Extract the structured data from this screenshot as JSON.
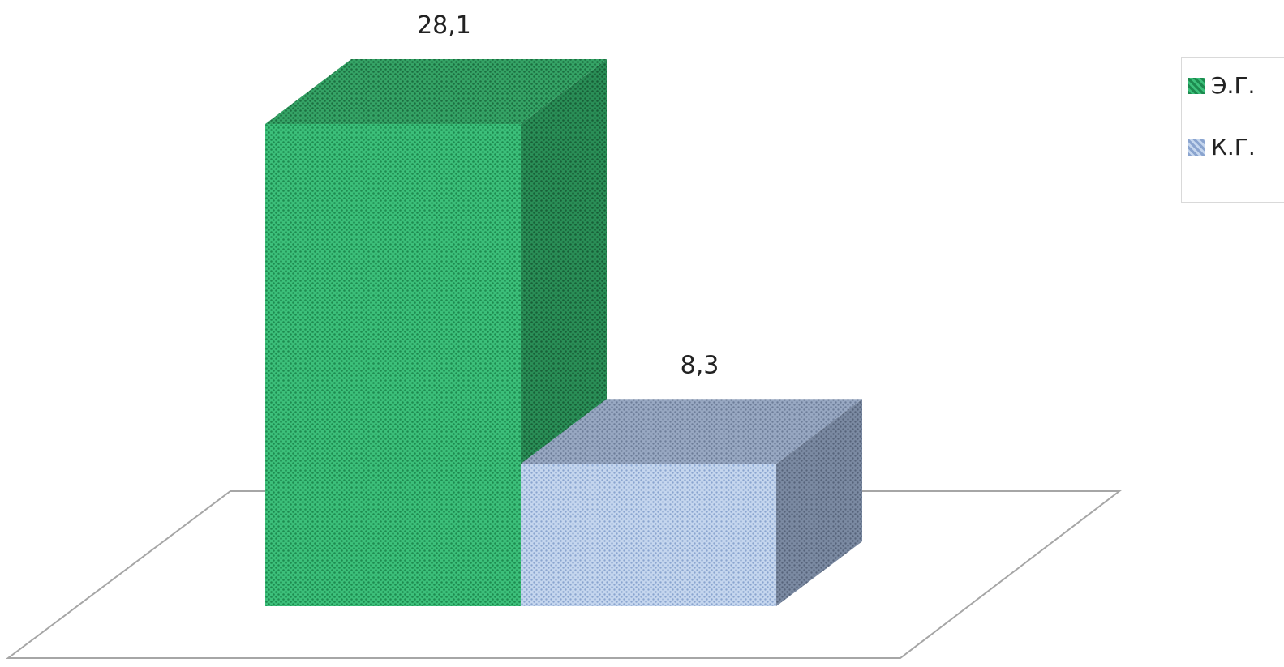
{
  "chart_data": {
    "type": "bar",
    "categories": [
      ""
    ],
    "series": [
      {
        "name": "Э.Г.",
        "values": [
          28.1
        ],
        "label": "28,1",
        "color": "#2fb56e"
      },
      {
        "name": "К.Г.",
        "values": [
          8.3
        ],
        "label": "8,3",
        "color": "#a8bde0"
      }
    ],
    "ylim": [
      0,
      30
    ],
    "grid": false,
    "legend_position": "top-right",
    "style": "3d-column"
  },
  "legend": {
    "items": [
      {
        "label": "Э.Г.",
        "color": "#2fb56e"
      },
      {
        "label": "К.Г.",
        "color": "#a8bde0"
      }
    ]
  }
}
